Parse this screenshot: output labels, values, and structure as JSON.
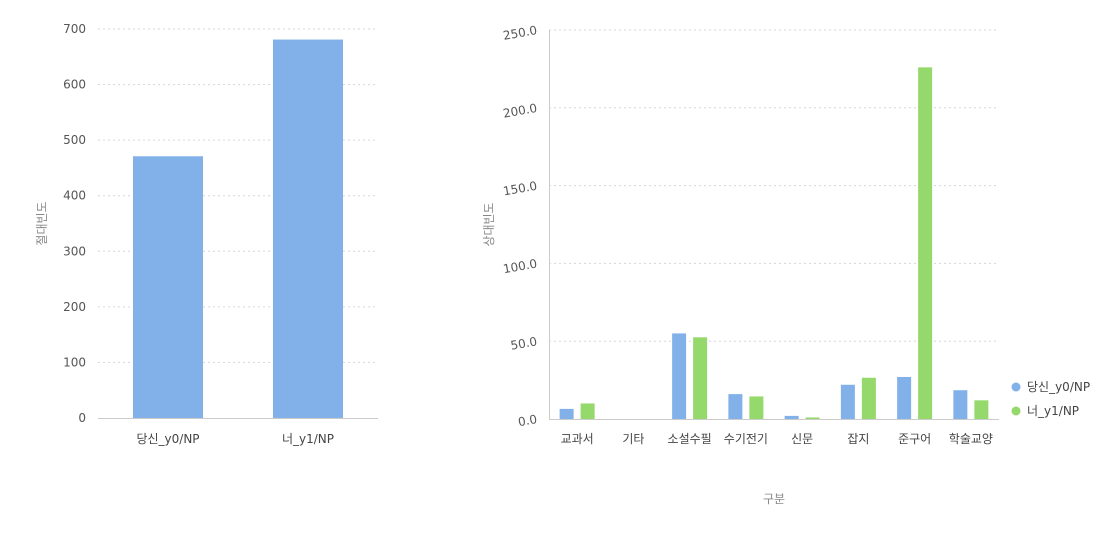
{
  "chart_data": [
    {
      "type": "bar",
      "categories": [
        "당신_y0/NP",
        "너_y1/NP"
      ],
      "values": [
        471,
        681
      ],
      "ylabel": "절대빈도",
      "ylim": [
        0,
        700
      ],
      "yticks": [
        "0",
        "100",
        "200",
        "300",
        "400",
        "500",
        "600",
        "700"
      ],
      "grid": true,
      "color": "#82b1e9"
    },
    {
      "type": "bar",
      "categories": [
        "교과서",
        "기타",
        "소설수필",
        "수기전기",
        "신문",
        "잡지",
        "준구어",
        "학술교양"
      ],
      "series": [
        {
          "name": "당신_y0/NP",
          "color": "#82b1e9",
          "values": [
            6.5,
            0,
            55,
            16,
            2,
            22,
            27,
            18.5
          ]
        },
        {
          "name": "너_y1/NP",
          "color": "#95d86b",
          "values": [
            10,
            0,
            52.5,
            14.5,
            1,
            26.5,
            226,
            12
          ]
        }
      ],
      "xlabel": "구분",
      "ylabel": "상대빈도",
      "ylim": [
        0,
        250
      ],
      "yticks": [
        "0.0",
        "50.0",
        "100.0",
        "150.0",
        "200.0",
        "250.0"
      ],
      "grid": true,
      "legend": "right"
    }
  ]
}
